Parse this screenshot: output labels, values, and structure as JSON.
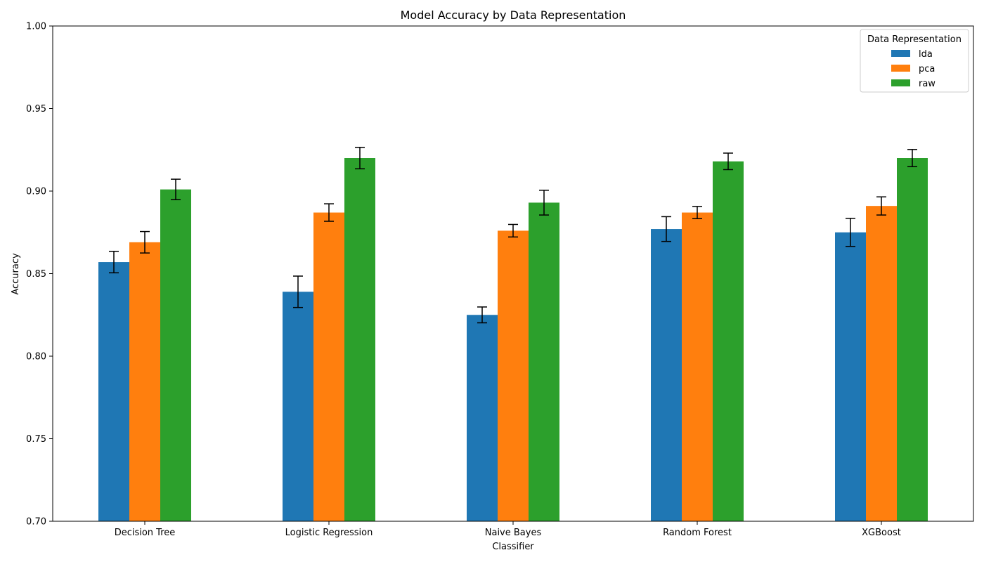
{
  "chart_data": {
    "type": "bar",
    "title": "Model Accuracy by Data Representation",
    "xlabel": "Classifier",
    "ylabel": "Accuracy",
    "ylim": [
      0.7,
      1.0
    ],
    "yticks": [
      "0.70",
      "0.75",
      "0.80",
      "0.85",
      "0.90",
      "0.95",
      "1.00"
    ],
    "categories": [
      "Decision Tree",
      "Logistic Regression",
      "Naive Bayes",
      "Random Forest",
      "XGBoost"
    ],
    "legend": {
      "title": "Data Representation",
      "placement": "top-right"
    },
    "grid": false,
    "series": [
      {
        "name": "lda",
        "color": "#1f77b4",
        "values": [
          0.857,
          0.839,
          0.825,
          0.877,
          0.875
        ],
        "errors": [
          0.0065,
          0.0095,
          0.0048,
          0.0075,
          0.0085
        ]
      },
      {
        "name": "pca",
        "color": "#ff7f0e",
        "values": [
          0.869,
          0.887,
          0.876,
          0.887,
          0.891
        ],
        "errors": [
          0.0065,
          0.0053,
          0.0038,
          0.0037,
          0.0055
        ]
      },
      {
        "name": "raw",
        "color": "#2ca02c",
        "values": [
          0.901,
          0.92,
          0.893,
          0.918,
          0.92
        ],
        "errors": [
          0.0062,
          0.0065,
          0.0075,
          0.005,
          0.0052
        ]
      }
    ]
  }
}
